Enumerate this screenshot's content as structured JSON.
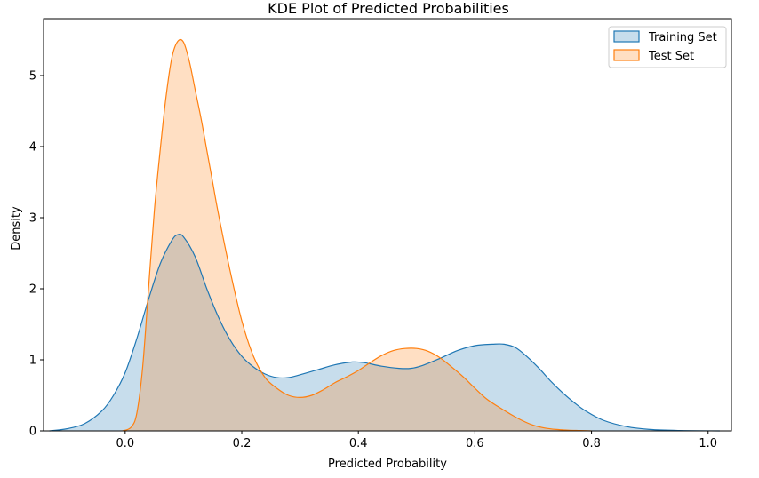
{
  "chart_data": {
    "type": "area",
    "title": "KDE Plot of Predicted Probabilities",
    "xlabel": "Predicted Probability",
    "ylabel": "Density",
    "xlim": [
      -0.14,
      1.04
    ],
    "ylim": [
      0,
      5.8
    ],
    "xticks": [
      0.0,
      0.2,
      0.4,
      0.6,
      0.8,
      1.0
    ],
    "xtick_labels": [
      "0.0",
      "0.2",
      "0.4",
      "0.6",
      "0.8",
      "1.0"
    ],
    "yticks": [
      0,
      1,
      2,
      3,
      4,
      5
    ],
    "ytick_labels": [
      "0",
      "1",
      "2",
      "3",
      "4",
      "5"
    ],
    "grid": false,
    "legend_position": "top-right",
    "series": [
      {
        "name": "Training Set",
        "color": "#1f77b4",
        "fill_opacity": 0.25,
        "x": [
          -0.13,
          -0.1,
          -0.07,
          -0.04,
          -0.02,
          0.0,
          0.02,
          0.04,
          0.06,
          0.08,
          0.09,
          0.1,
          0.12,
          0.14,
          0.16,
          0.18,
          0.2,
          0.22,
          0.24,
          0.26,
          0.28,
          0.3,
          0.33,
          0.36,
          0.39,
          0.41,
          0.44,
          0.47,
          0.49,
          0.51,
          0.54,
          0.57,
          0.6,
          0.63,
          0.65,
          0.67,
          0.69,
          0.71,
          0.73,
          0.75,
          0.77,
          0.79,
          0.82,
          0.86,
          0.9,
          0.95,
          1.02
        ],
        "y": [
          0.0,
          0.03,
          0.1,
          0.28,
          0.5,
          0.82,
          1.3,
          1.85,
          2.35,
          2.68,
          2.76,
          2.73,
          2.45,
          2.0,
          1.6,
          1.28,
          1.05,
          0.9,
          0.8,
          0.75,
          0.75,
          0.79,
          0.86,
          0.93,
          0.97,
          0.96,
          0.91,
          0.88,
          0.88,
          0.92,
          1.02,
          1.13,
          1.2,
          1.22,
          1.22,
          1.17,
          1.04,
          0.88,
          0.7,
          0.54,
          0.4,
          0.28,
          0.15,
          0.06,
          0.02,
          0.005,
          0.0
        ]
      },
      {
        "name": "Test Set",
        "color": "#ff7f0e",
        "fill_opacity": 0.25,
        "x": [
          -0.005,
          0.01,
          0.02,
          0.03,
          0.04,
          0.05,
          0.06,
          0.07,
          0.08,
          0.09,
          0.1,
          0.11,
          0.12,
          0.13,
          0.14,
          0.15,
          0.16,
          0.18,
          0.2,
          0.22,
          0.24,
          0.26,
          0.28,
          0.3,
          0.32,
          0.34,
          0.36,
          0.38,
          0.4,
          0.42,
          0.44,
          0.46,
          0.48,
          0.5,
          0.52,
          0.54,
          0.56,
          0.58,
          0.6,
          0.62,
          0.64,
          0.66,
          0.68,
          0.7,
          0.72,
          0.74,
          0.76,
          0.78,
          0.8
        ],
        "y": [
          0.0,
          0.05,
          0.25,
          0.9,
          2.0,
          3.1,
          3.95,
          4.7,
          5.25,
          5.48,
          5.47,
          5.2,
          4.8,
          4.4,
          3.95,
          3.5,
          3.05,
          2.25,
          1.55,
          1.05,
          0.75,
          0.6,
          0.5,
          0.47,
          0.5,
          0.58,
          0.68,
          0.76,
          0.85,
          0.96,
          1.06,
          1.13,
          1.16,
          1.16,
          1.12,
          1.03,
          0.9,
          0.76,
          0.6,
          0.45,
          0.34,
          0.24,
          0.15,
          0.08,
          0.04,
          0.02,
          0.01,
          0.005,
          0.0
        ]
      }
    ]
  }
}
